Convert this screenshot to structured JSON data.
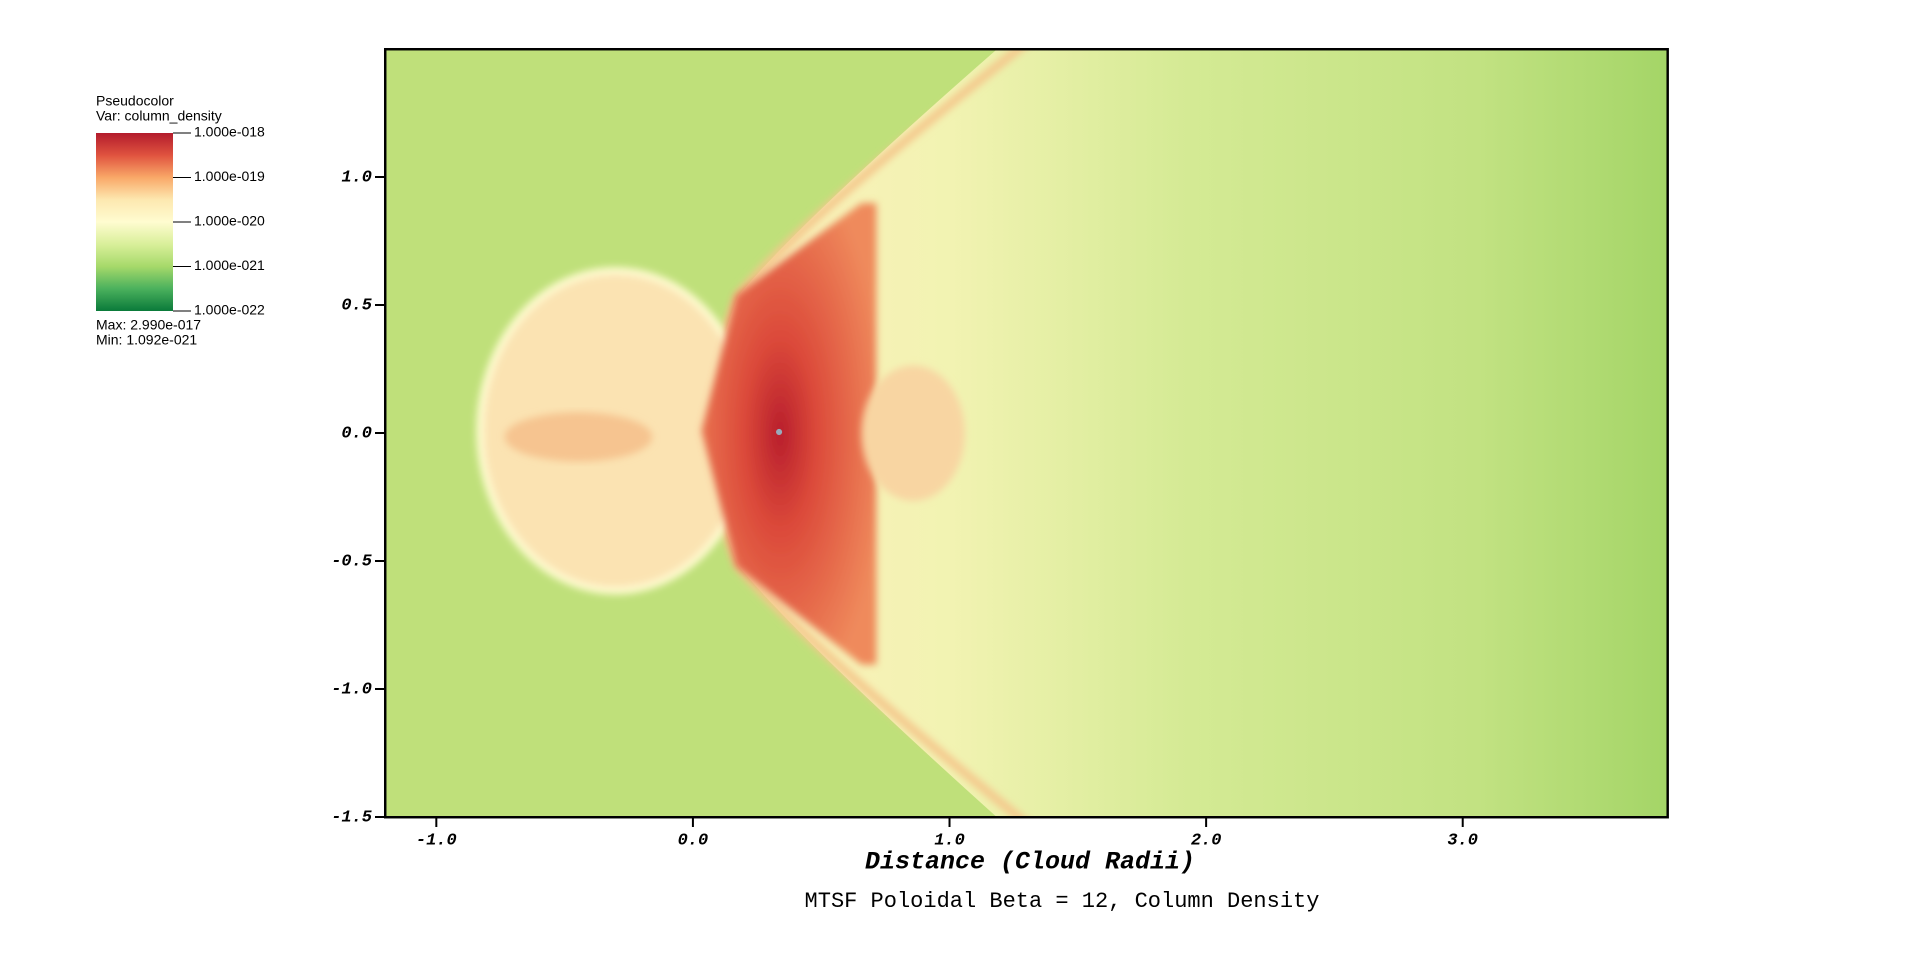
{
  "chart_data": {
    "type": "pseudocolor",
    "title": "MTSF Poloidal Beta = 12, Column Density",
    "xlabel": "Distance (Cloud Radii)",
    "xlim": [
      -1.2,
      3.8
    ],
    "xticks": [
      {
        "value": -1,
        "label": "-1.0"
      },
      {
        "value": 0,
        "label": "0.0"
      },
      {
        "value": 1,
        "label": "1.0"
      },
      {
        "value": 2,
        "label": "2.0"
      },
      {
        "value": 3,
        "label": "3.0"
      }
    ],
    "ylim": [
      -1.5,
      1.5
    ],
    "yticks": [
      {
        "value": 1,
        "label": "1.0"
      },
      0.5,
      {
        "value": 0,
        "label": "0.0"
      },
      -0.5,
      {
        "value": -1,
        "label": "-1.0"
      },
      -1.5
    ],
    "colorbar": {
      "title": "Pseudocolor",
      "variable": "Var: column_density",
      "scale": "log",
      "range": [
        1e-22,
        1e-18
      ],
      "ticks": [
        {
          "value": 1e-18,
          "label": "1.000e-018"
        },
        {
          "value": 1e-19,
          "label": "1.000e-019"
        },
        {
          "value": 1e-20,
          "label": "1.000e-020"
        },
        {
          "value": 1e-21,
          "label": "1.000e-021"
        },
        {
          "value": 1e-22,
          "label": "1.000e-022"
        }
      ],
      "colors": [
        "#b31b2c",
        "#e0533f",
        "#f9a868",
        "#fde8b0",
        "#fffcd0",
        "#d9ef9a",
        "#a6d96a",
        "#4bb15d",
        "#0a7a3a"
      ],
      "max": "Max:  2.990e-017",
      "min": "Min:  1.092e-021"
    }
  }
}
